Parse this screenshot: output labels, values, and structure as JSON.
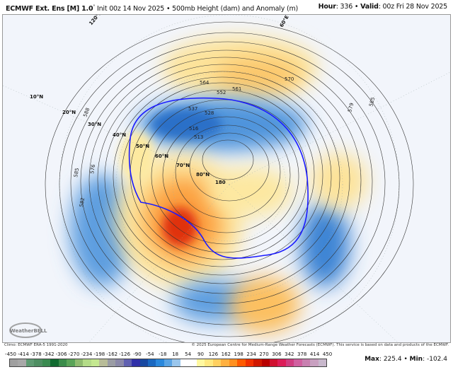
{
  "header": {
    "model": "ECMWF Ext. Ens [M] 1.0",
    "degree": "°",
    "init": " Init 00z 14 Nov 2025 • 500mb Height (dam) and Anomaly (m)",
    "hour_label": "Hour",
    "hour": ": 336 • ",
    "valid_label": "Valid",
    "valid": ": 00z Fri 28 Nov 2025"
  },
  "map": {
    "lat_labels": [
      "10°N",
      "20°N",
      "30°N",
      "40°N",
      "50°N",
      "60°N",
      "70°N",
      "80°N",
      "180"
    ],
    "lon_labels": [
      "120°E",
      "60°E"
    ],
    "contour_labels": [
      "588",
      "585",
      "576",
      "582",
      "537",
      "528",
      "516",
      "513",
      "561",
      "552",
      "570",
      "579",
      "585",
      "564"
    ],
    "logo_text": "WeatherBELL",
    "highlight_contour_color": "#1a1aff"
  },
  "footer": {
    "climo": "Climo: ECMWF ERA-5 1991-2020",
    "copyright": "© 2025 European Centre for Medium-Range Weather Forecasts (ECMWF). This service is based on data and products of the ECMWF."
  },
  "colorbar": {
    "ticks": [
      "-450",
      "-414",
      "-378",
      "-342",
      "-306",
      "-270",
      "-234",
      "-198",
      "-162",
      "-126",
      "-90",
      "-54",
      "-18",
      "18",
      "54",
      "90",
      "126",
      "162",
      "198",
      "234",
      "270",
      "306",
      "342",
      "378",
      "414",
      "450"
    ],
    "colors": [
      "#a0a0a0",
      "#a8a8a8",
      "#5e9a72",
      "#4e8e62",
      "#3a8a50",
      "#106a30",
      "#3a8c4a",
      "#5aa458",
      "#90bc70",
      "#b4dc88",
      "#c4e890",
      "#b8bc98",
      "#9a9ca4",
      "#8a88a8",
      "#6060b0",
      "#3030a8",
      "#1848a0",
      "#1a68c0",
      "#2a88dc",
      "#5aa4e4",
      "#9ac6ec",
      "#ffffff",
      "#ffffff",
      "#fff8a0",
      "#ffe880",
      "#ffd060",
      "#ffb040",
      "#ff9020",
      "#ff5a00",
      "#f03000",
      "#d01800",
      "#b80000",
      "#d01030",
      "#dc1c58",
      "#d03c80",
      "#d060a0",
      "#c880b0",
      "#c8a0c0",
      "#c8b8cc"
    ]
  },
  "stats": {
    "max_label": "Max",
    "max": ": 225.4 • ",
    "min_label": "Min",
    "min": ": -102.4"
  }
}
